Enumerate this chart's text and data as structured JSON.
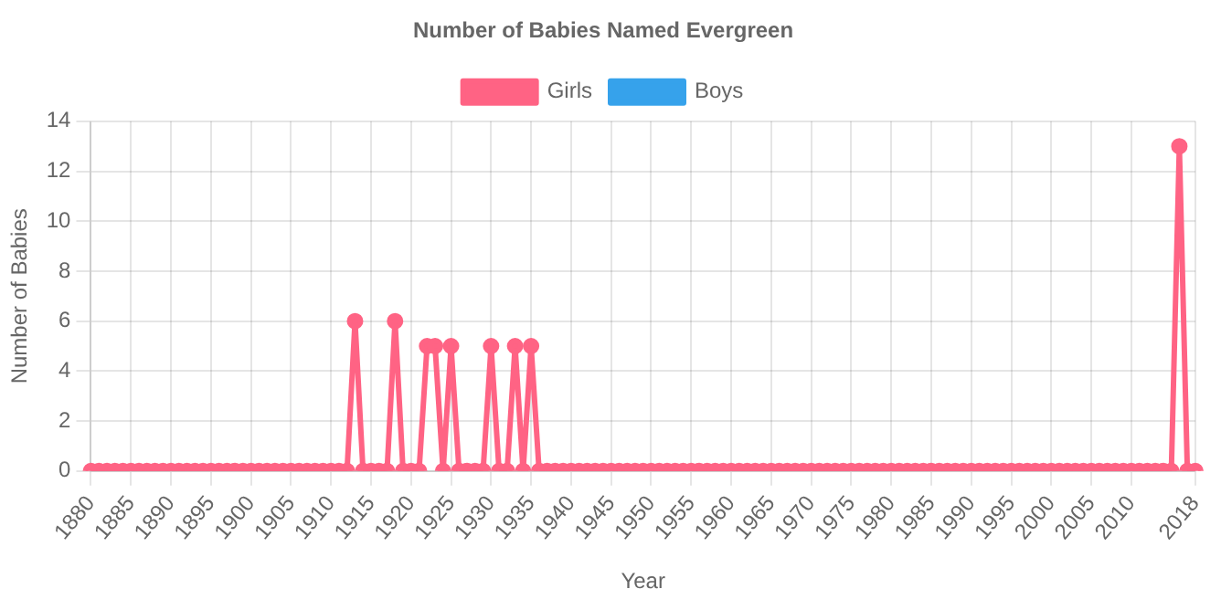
{
  "chart_data": {
    "type": "line",
    "title": "Number of Babies Named Evergreen",
    "xlabel": "Year",
    "ylabel": "Number of Babies",
    "categories": [
      "1880",
      null,
      null,
      null,
      null,
      "1885",
      null,
      null,
      null,
      null,
      "1890",
      null,
      null,
      null,
      null,
      "1895",
      null,
      null,
      null,
      null,
      "1900",
      null,
      null,
      null,
      null,
      "1905",
      null,
      null,
      null,
      null,
      "1910",
      null,
      null,
      null,
      null,
      "1915",
      null,
      null,
      null,
      null,
      "1920",
      null,
      null,
      null,
      null,
      "1925",
      null,
      null,
      null,
      null,
      "1930",
      null,
      null,
      null,
      null,
      "1935",
      null,
      null,
      null,
      null,
      "1940",
      null,
      null,
      null,
      null,
      "1945",
      null,
      null,
      null,
      null,
      "1950",
      null,
      null,
      null,
      null,
      "1955",
      null,
      null,
      null,
      null,
      "1960",
      null,
      null,
      null,
      null,
      "1965",
      null,
      null,
      null,
      null,
      "1970",
      null,
      null,
      null,
      null,
      "1975",
      null,
      null,
      null,
      null,
      "1980",
      null,
      null,
      null,
      null,
      "1985",
      null,
      null,
      null,
      null,
      "1990",
      null,
      null,
      null,
      null,
      "1995",
      null,
      null,
      null,
      null,
      "2000",
      null,
      null,
      null,
      null,
      "2005",
      null,
      null,
      null,
      null,
      "2010",
      null,
      null,
      null,
      null,
      null,
      null,
      null,
      "2018"
    ],
    "series": [
      {
        "name": "Girls",
        "color": "#ff6384",
        "values": [
          0,
          0,
          0,
          0,
          0,
          0,
          0,
          0,
          0,
          0,
          0,
          0,
          0,
          0,
          0,
          0,
          0,
          0,
          0,
          0,
          0,
          0,
          0,
          0,
          0,
          0,
          0,
          0,
          0,
          0,
          0,
          0,
          0,
          6,
          0,
          0,
          0,
          0,
          6,
          0,
          0,
          0,
          5,
          5,
          0,
          5,
          0,
          0,
          0,
          0,
          5,
          0,
          0,
          5,
          0,
          5,
          0,
          0,
          0,
          0,
          0,
          0,
          0,
          0,
          0,
          0,
          0,
          0,
          0,
          0,
          0,
          0,
          0,
          0,
          0,
          0,
          0,
          0,
          0,
          0,
          0,
          0,
          0,
          0,
          0,
          0,
          0,
          0,
          0,
          0,
          0,
          0,
          0,
          0,
          0,
          0,
          0,
          0,
          0,
          0,
          0,
          0,
          0,
          0,
          0,
          0,
          0,
          0,
          0,
          0,
          0,
          0,
          0,
          0,
          0,
          0,
          0,
          0,
          0,
          0,
          0,
          0,
          0,
          0,
          0,
          0,
          0,
          0,
          0,
          0,
          0,
          0,
          0,
          0,
          0,
          0,
          13,
          0,
          0
        ]
      },
      {
        "name": "Boys",
        "color": "#36a2eb",
        "values": [
          null,
          null,
          null,
          null,
          null,
          null,
          null,
          null,
          null,
          null,
          null,
          null,
          null,
          null,
          null,
          null,
          null,
          null,
          null,
          null,
          null,
          null,
          null,
          null,
          null,
          null,
          null,
          null,
          null,
          null,
          null,
          null,
          null,
          null,
          null,
          null,
          null,
          null,
          null,
          null,
          null,
          null,
          null,
          null,
          null,
          null,
          null,
          null,
          null,
          null,
          null,
          null,
          null,
          null,
          null,
          null,
          null,
          null,
          null,
          null,
          null,
          null,
          null,
          null,
          null,
          null,
          null,
          null,
          null,
          null,
          null,
          null,
          null,
          null,
          null,
          null,
          null,
          null,
          null,
          null,
          null,
          null,
          null,
          null,
          null,
          null,
          null,
          null,
          null,
          null,
          null,
          null,
          null,
          null,
          null,
          null,
          null,
          null,
          null,
          null,
          null,
          null,
          null,
          null,
          null,
          null,
          null,
          null,
          null,
          null,
          null,
          null,
          null,
          null,
          null,
          null,
          null,
          null,
          null,
          null,
          null,
          null,
          null,
          null,
          null,
          null,
          null,
          null,
          null,
          null,
          null,
          null,
          null,
          null,
          null,
          null,
          null,
          null,
          null
        ]
      }
    ],
    "ylim": [
      0,
      14
    ],
    "yticks": [
      0,
      2,
      4,
      6,
      8,
      10,
      12,
      14
    ],
    "grid": true,
    "legend": "top",
    "marker": "circle",
    "line_style": "solid"
  }
}
